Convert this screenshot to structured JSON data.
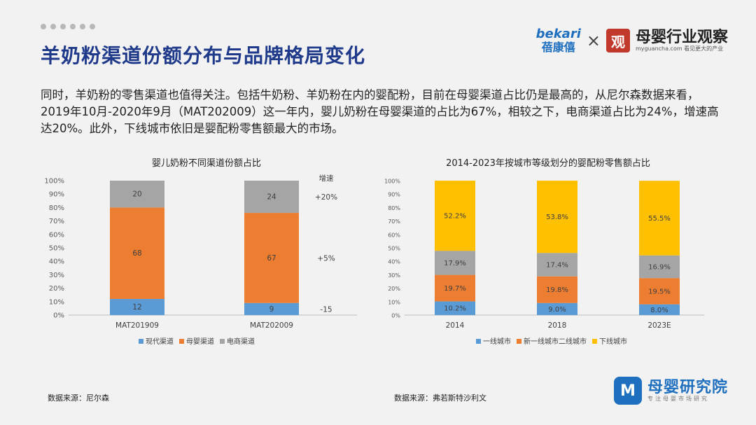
{
  "header": {
    "title": "羊奶粉渠道份额分布与品牌格局变化",
    "logo_bekari_en": "bekari",
    "logo_bekari_cn": "蓓康僖",
    "logo_times": "×",
    "logo_myg_seal": "观",
    "logo_myg_cn": "母婴行业观察",
    "logo_myg_sub": "myguancha.com 看见更大的产业"
  },
  "paragraph": "同时，羊奶粉的零售渠道也值得关注。包括牛奶粉、羊奶粉在内的婴配粉，目前在母婴渠道占比仍是最高的，从尼尔森数据来看，2019年10月-2020年9月（MAT202009）这一年内，婴儿奶粉在母婴渠道的占比为67%，相较之下，电商渠道占比为24%，增速高达20%。此外，下线城市依旧是婴配粉零售额最大的市场。",
  "chart_data": [
    {
      "type": "bar",
      "stacked": true,
      "title": "婴儿奶粉不同渠道份额占比",
      "categories": [
        "MAT201909",
        "MAT202009"
      ],
      "series": [
        {
          "name": "现代渠道",
          "values": [
            12,
            9
          ],
          "labels": [
            "12",
            "9"
          ],
          "color": "#5b9bd5"
        },
        {
          "name": "母婴渠道",
          "values": [
            68,
            67
          ],
          "labels": [
            "68",
            "67"
          ],
          "color": "#ed7d31"
        },
        {
          "name": "电商渠道",
          "values": [
            20,
            24
          ],
          "labels": [
            "20",
            "24"
          ],
          "color": "#a5a5a5"
        }
      ],
      "yticks": [
        "0%",
        "10%",
        "20%",
        "30%",
        "40%",
        "50%",
        "60%",
        "70%",
        "80%",
        "90%",
        "100%"
      ],
      "ylim": [
        0,
        100
      ],
      "growth_header": "增速",
      "growth_labels": [
        "+20%",
        "+5%",
        "-15"
      ],
      "legend_position": "bottom"
    },
    {
      "type": "bar",
      "stacked": true,
      "title": "2014-2023年按城市等级划分的婴配粉零售额占比",
      "categories": [
        "2014",
        "2018",
        "2023E"
      ],
      "series": [
        {
          "name": "一线城市",
          "values": [
            10.2,
            9.0,
            8.0
          ],
          "labels": [
            "10.2%",
            "9.0%",
            "8.0%"
          ],
          "color": "#5b9bd5"
        },
        {
          "name": "新一线城市二线城市",
          "values": [
            19.7,
            19.8,
            19.5
          ],
          "labels": [
            "19.7%",
            "19.8%",
            "19.5%"
          ],
          "color": "#ed7d31"
        },
        {
          "name": "",
          "values": [
            17.9,
            17.4,
            16.9
          ],
          "labels": [
            "17.9%",
            "17.4%",
            "16.9%"
          ],
          "color": "#a5a5a5"
        },
        {
          "name": "下线城市",
          "values": [
            52.2,
            53.8,
            55.5
          ],
          "labels": [
            "52.2%",
            "53.8%",
            "55.5%"
          ],
          "color": "#ffc000"
        }
      ],
      "yticks": [
        "0%",
        "10%",
        "20%",
        "30%",
        "40%",
        "50%",
        "60%",
        "70%",
        "80%",
        "90%",
        "100%"
      ],
      "ylim": [
        0,
        100
      ],
      "legend_position": "bottom"
    }
  ],
  "sources": {
    "left": "数据来源：尼尔森",
    "right": "数据来源：弗若斯特沙利文"
  },
  "footer": {
    "icon": "M",
    "cn": "母婴研究院",
    "sub": "专注母婴市场研究"
  }
}
